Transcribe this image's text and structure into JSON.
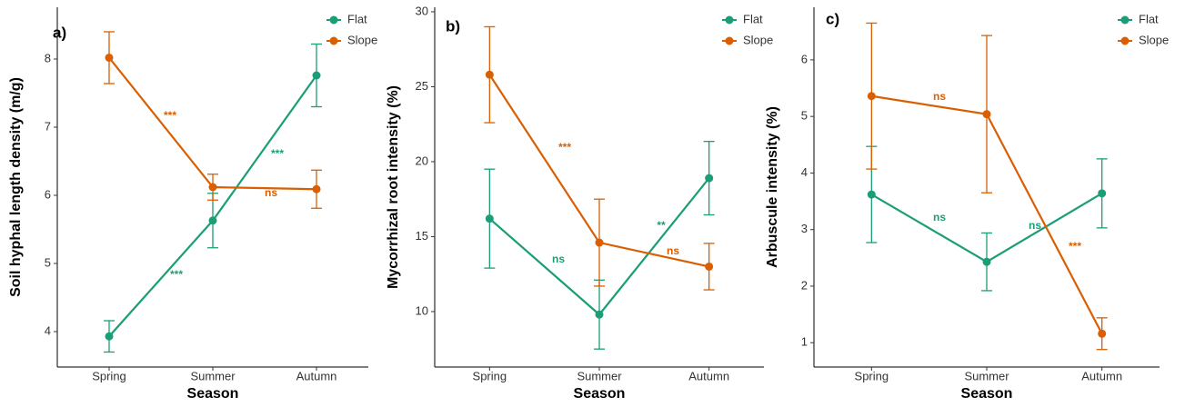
{
  "chart_data": [
    {
      "type": "line",
      "panel_label": "a)",
      "x_label": "Season",
      "y_label": "Soil hyphal length density (m/g)",
      "categories": [
        "Spring",
        "Summer",
        "Autumn"
      ],
      "series": [
        {
          "name": "Flat",
          "color": "#1b9e77",
          "values": [
            3.93,
            5.63,
            7.76
          ],
          "errors": [
            0.23,
            0.4,
            0.46
          ]
        },
        {
          "name": "Slope",
          "color": "#d95f02",
          "values": [
            8.02,
            6.12,
            6.09
          ],
          "errors": [
            0.38,
            0.19,
            0.28
          ]
        }
      ],
      "annotations": [
        {
          "text": "***",
          "color": "#d95f02"
        },
        {
          "text": "***",
          "color": "#1b9e77"
        },
        {
          "text": "ns",
          "color": "#d95f02"
        },
        {
          "text": "***",
          "color": "#1b9e77"
        }
      ],
      "ylim": [
        3.48,
        8.76
      ],
      "yticks": [
        4,
        5,
        6,
        7,
        8
      ],
      "legend": "top-right"
    },
    {
      "type": "line",
      "panel_label": "b)",
      "x_label": "Season",
      "y_label": "Mycorrhizal root intensity (%)",
      "categories": [
        "Spring",
        "Summer",
        "Autumn"
      ],
      "series": [
        {
          "name": "Flat",
          "color": "#1b9e77",
          "values": [
            16.2,
            9.8,
            18.9
          ],
          "errors": [
            3.3,
            2.3,
            2.45
          ]
        },
        {
          "name": "Slope",
          "color": "#d95f02",
          "values": [
            25.8,
            14.6,
            13.0
          ],
          "errors": [
            3.2,
            2.9,
            1.55
          ]
        }
      ],
      "annotations": [
        {
          "text": "***",
          "color": "#d95f02"
        },
        {
          "text": "ns",
          "color": "#1b9e77"
        },
        {
          "text": "**",
          "color": "#1b9e77"
        },
        {
          "text": "ns",
          "color": "#d95f02"
        }
      ],
      "ylim": [
        6.3,
        30.3
      ],
      "yticks": [
        10,
        15,
        20,
        25,
        30
      ],
      "legend": "top-right"
    },
    {
      "type": "line",
      "panel_label": "c)",
      "x_label": "Season",
      "y_label": "Arbuscule intensity (%)",
      "categories": [
        "Spring",
        "Summer",
        "Autumn"
      ],
      "series": [
        {
          "name": "Flat",
          "color": "#1b9e77",
          "values": [
            3.62,
            2.43,
            3.64
          ],
          "errors": [
            0.85,
            0.51,
            0.61
          ]
        },
        {
          "name": "Slope",
          "color": "#d95f02",
          "values": [
            5.36,
            5.04,
            1.16
          ],
          "errors": [
            1.29,
            1.39,
            0.28
          ]
        }
      ],
      "annotations": [
        {
          "text": "ns",
          "color": "#d95f02"
        },
        {
          "text": "ns",
          "color": "#1b9e77"
        },
        {
          "text": "ns",
          "color": "#1b9e77"
        },
        {
          "text": "***",
          "color": "#d95f02"
        }
      ],
      "ylim": [
        0.57,
        6.93
      ],
      "yticks": [
        1,
        2,
        3,
        4,
        5,
        6
      ],
      "legend": "top-right"
    }
  ]
}
